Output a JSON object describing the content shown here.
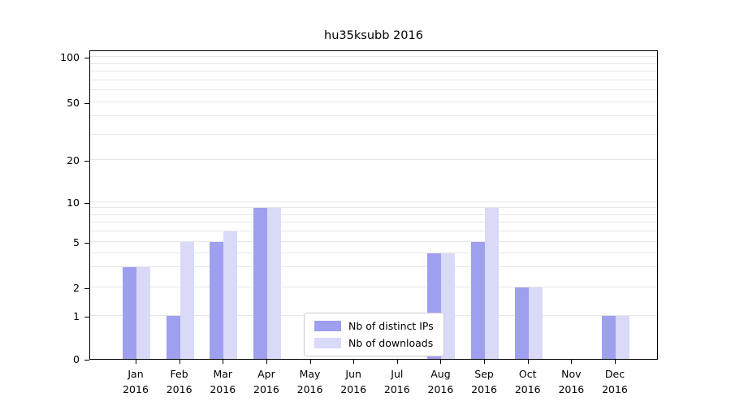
{
  "title": "hu35ksubb 2016",
  "chart_data": {
    "type": "bar",
    "title": "hu35ksubb 2016",
    "categories": [
      "Jan",
      "Feb",
      "Mar",
      "Apr",
      "May",
      "Jun",
      "Jul",
      "Aug",
      "Sep",
      "Oct",
      "Nov",
      "Dec"
    ],
    "category_year": "2016",
    "series": [
      {
        "name": "Nb of distinct IPs",
        "color": "#9f9ff0",
        "values": [
          3,
          1,
          5,
          9,
          0,
          0,
          0,
          4,
          5,
          2,
          0,
          1
        ]
      },
      {
        "name": "Nb of downloads",
        "color": "#d9d9f8",
        "values": [
          3,
          5,
          6,
          9,
          0,
          0,
          0,
          4,
          9,
          2,
          0,
          1
        ]
      }
    ],
    "yscale": "log-like",
    "ylim": [
      0,
      100
    ],
    "y_ticks": [
      0,
      1,
      2,
      5,
      10,
      20,
      50,
      100
    ],
    "y_minor_gridlines": [
      1,
      2,
      3,
      4,
      5,
      6,
      7,
      8,
      9,
      10,
      20,
      30,
      40,
      50,
      60,
      70,
      80,
      90,
      100
    ],
    "grid": true,
    "grid_color": "#e7e7e7",
    "axis_color": "#000000",
    "legend_position": "bottom-center-inside"
  }
}
